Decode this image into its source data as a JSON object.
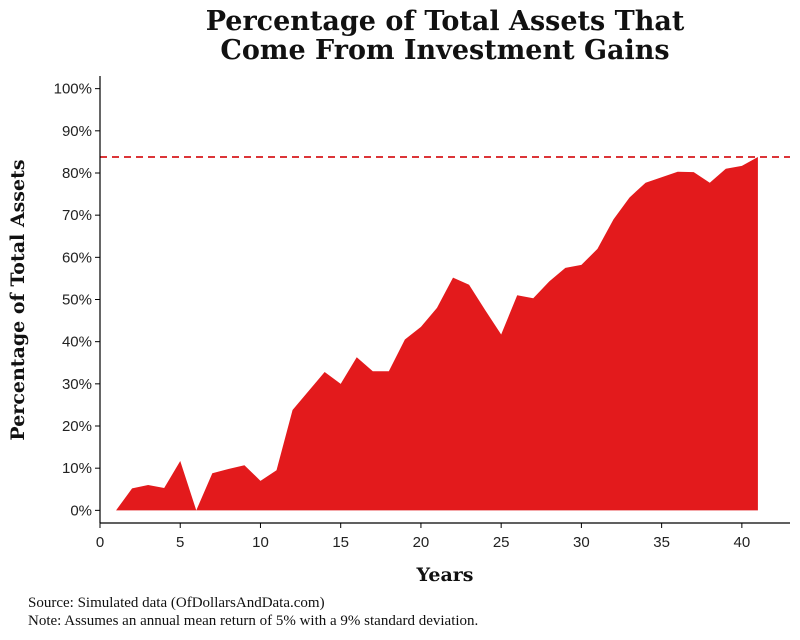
{
  "chart_data": {
    "type": "area",
    "title_lines": [
      "Percentage of Total Assets That",
      "Come From Investment Gains"
    ],
    "xlabel": "Years",
    "ylabel": "Percentage of Total Assets",
    "xlim": [
      0,
      43
    ],
    "ylim": [
      -0.03,
      1.03
    ],
    "x_ticks": [
      0,
      5,
      10,
      15,
      20,
      25,
      30,
      35,
      40
    ],
    "x_tick_labels": [
      "0",
      "5",
      "10",
      "15",
      "20",
      "25",
      "30",
      "35",
      "40"
    ],
    "y_ticks": [
      0,
      0.1,
      0.2,
      0.3,
      0.4,
      0.5,
      0.6,
      0.7,
      0.8,
      0.9,
      1.0
    ],
    "y_tick_labels": [
      "0%",
      "10%",
      "20%",
      "30%",
      "40%",
      "50%",
      "60%",
      "70%",
      "80%",
      "90%",
      "100%"
    ],
    "series": [
      {
        "x": [
          1,
          2,
          3,
          4,
          5,
          6,
          7,
          8,
          9,
          10,
          11,
          12,
          13,
          14,
          15,
          16,
          17,
          18,
          19,
          20,
          21,
          22,
          23,
          24,
          25,
          26,
          27,
          28,
          29,
          30,
          31,
          32,
          33,
          34,
          35,
          36,
          37,
          38,
          39,
          40,
          41
        ],
        "values": [
          0.0,
          0.052,
          0.06,
          0.053,
          0.117,
          0.0,
          0.088,
          0.098,
          0.107,
          0.07,
          0.095,
          0.238,
          0.283,
          0.328,
          0.3,
          0.363,
          0.33,
          0.33,
          0.405,
          0.435,
          0.48,
          0.552,
          0.535,
          0.475,
          0.417,
          0.51,
          0.503,
          0.543,
          0.575,
          0.582,
          0.62,
          0.69,
          0.742,
          0.777,
          0.79,
          0.803,
          0.802,
          0.777,
          0.81,
          0.817,
          0.838
        ],
        "color": "#e31a1c"
      }
    ],
    "reference_line": {
      "y": 0.838,
      "style": "dashed",
      "color": "#d7191c"
    },
    "grid": false,
    "legend": "none"
  },
  "caption": {
    "source": "Source:  Simulated data (OfDollarsAndData.com)",
    "note": "Note:  Assumes an annual mean return of 5% with a 9% standard deviation."
  }
}
